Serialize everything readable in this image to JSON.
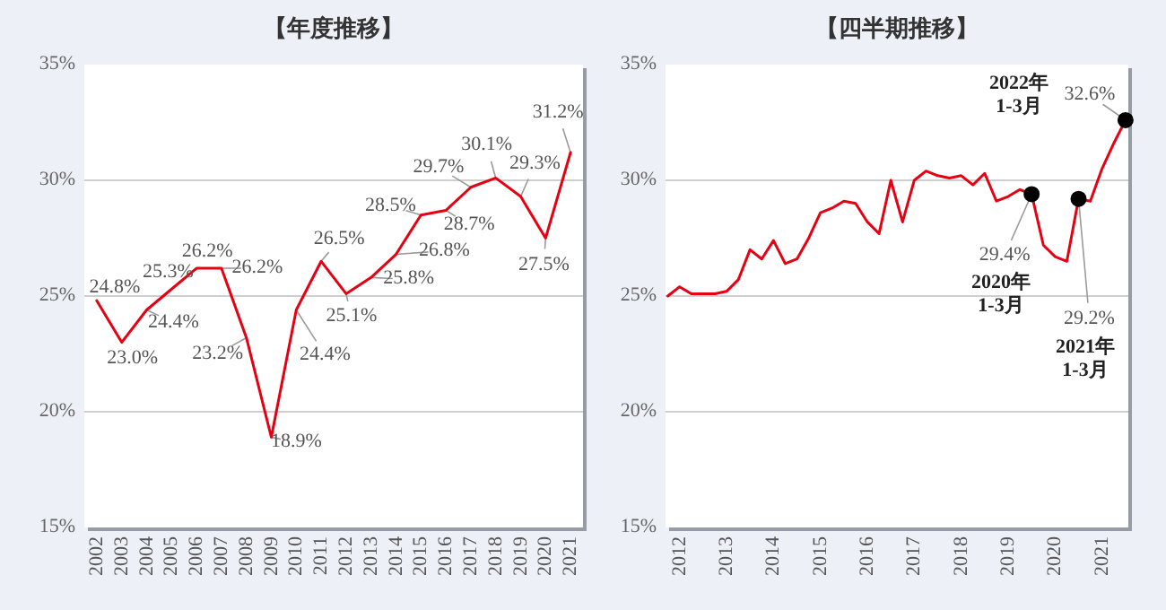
{
  "chart_data": [
    {
      "type": "line",
      "title": "【年度推移】",
      "categories": [
        "2002",
        "2003",
        "2004",
        "2005",
        "2006",
        "2007",
        "2008",
        "2009",
        "2010",
        "2011",
        "2012",
        "2013",
        "2014",
        "2015",
        "2016",
        "2017",
        "2018",
        "2019",
        "2020",
        "2021"
      ],
      "series": [
        {
          "color": "#e60012",
          "values": [
            24.8,
            23.0,
            24.4,
            25.3,
            26.2,
            26.2,
            23.2,
            18.9,
            24.4,
            26.5,
            25.1,
            25.8,
            26.8,
            28.5,
            28.7,
            29.7,
            30.1,
            29.3,
            27.5,
            31.2
          ],
          "value_labels": [
            "24.8%",
            "23.0%",
            "24.4%",
            "25.3%",
            "26.2%",
            "26.2%",
            "23.2%",
            "18.9%",
            "24.4%",
            "26.5%",
            "25.1%",
            "25.8%",
            "26.8%",
            "28.5%",
            "28.7%",
            "29.7%",
            "30.1%",
            "29.3%",
            "27.5%",
            "31.2%"
          ]
        }
      ],
      "ylim": [
        15,
        35
      ],
      "yticks": [
        {
          "value": 15,
          "label": "15%"
        },
        {
          "value": 20,
          "label": "20%"
        },
        {
          "value": 25,
          "label": "25%"
        },
        {
          "value": 30,
          "label": "30%"
        },
        {
          "value": 35,
          "label": "35%"
        }
      ],
      "grid": "y"
    },
    {
      "type": "line",
      "title": "【四半期推移】",
      "x": [
        2012.25,
        2012.5,
        2012.75,
        2013.0,
        2013.25,
        2013.5,
        2013.75,
        2014.0,
        2014.25,
        2014.5,
        2014.75,
        2015.0,
        2015.25,
        2015.5,
        2015.75,
        2016.0,
        2016.25,
        2016.5,
        2016.75,
        2017.0,
        2017.25,
        2017.5,
        2017.75,
        2018.0,
        2018.25,
        2018.5,
        2018.75,
        2019.0,
        2019.25,
        2019.5,
        2019.75,
        2020.0,
        2020.25,
        2020.5,
        2020.75,
        2021.0,
        2021.25,
        2021.5,
        2021.75,
        2022.0
      ],
      "series": [
        {
          "color": "#e60012",
          "values": [
            25.0,
            25.4,
            25.1,
            25.1,
            25.1,
            25.2,
            25.7,
            27.0,
            26.6,
            27.4,
            26.4,
            26.6,
            27.5,
            28.6,
            28.8,
            29.1,
            29.0,
            28.2,
            27.7,
            30.0,
            28.2,
            30.0,
            30.4,
            30.2,
            30.1,
            30.2,
            29.8,
            30.3,
            29.1,
            29.3,
            29.6,
            29.4,
            27.2,
            26.7,
            26.5,
            29.2,
            29.1,
            30.5,
            31.6,
            32.6
          ]
        },
        {
          "type": "scatter",
          "x": [
            2020.0,
            2021.0,
            2022.0
          ],
          "values": [
            29.4,
            29.2,
            32.6
          ],
          "color": "#000000",
          "marker": "circle",
          "value_labels": [
            "29.4%",
            "29.2%",
            "32.6%"
          ]
        }
      ],
      "annotations": [
        "2020年\n1-3月",
        "2021年\n1-3月",
        "2022年\n1-3月"
      ],
      "xlim": [
        2012.2,
        2022.06
      ],
      "xticks": [
        {
          "value": 2012.5,
          "label": "2012"
        },
        {
          "value": 2013.5,
          "label": "2013"
        },
        {
          "value": 2014.5,
          "label": "2014"
        },
        {
          "value": 2015.5,
          "label": "2015"
        },
        {
          "value": 2016.5,
          "label": "2016"
        },
        {
          "value": 2017.5,
          "label": "2017"
        },
        {
          "value": 2018.5,
          "label": "2018"
        },
        {
          "value": 2019.5,
          "label": "2019"
        },
        {
          "value": 2020.5,
          "label": "2020"
        },
        {
          "value": 2021.5,
          "label": "2021"
        }
      ],
      "ylim": [
        15,
        35
      ],
      "yticks": [
        {
          "value": 15,
          "label": "15%"
        },
        {
          "value": 20,
          "label": "20%"
        },
        {
          "value": 25,
          "label": "25%"
        },
        {
          "value": 30,
          "label": "30%"
        },
        {
          "value": 35,
          "label": "35%"
        }
      ],
      "grid": "y"
    }
  ]
}
